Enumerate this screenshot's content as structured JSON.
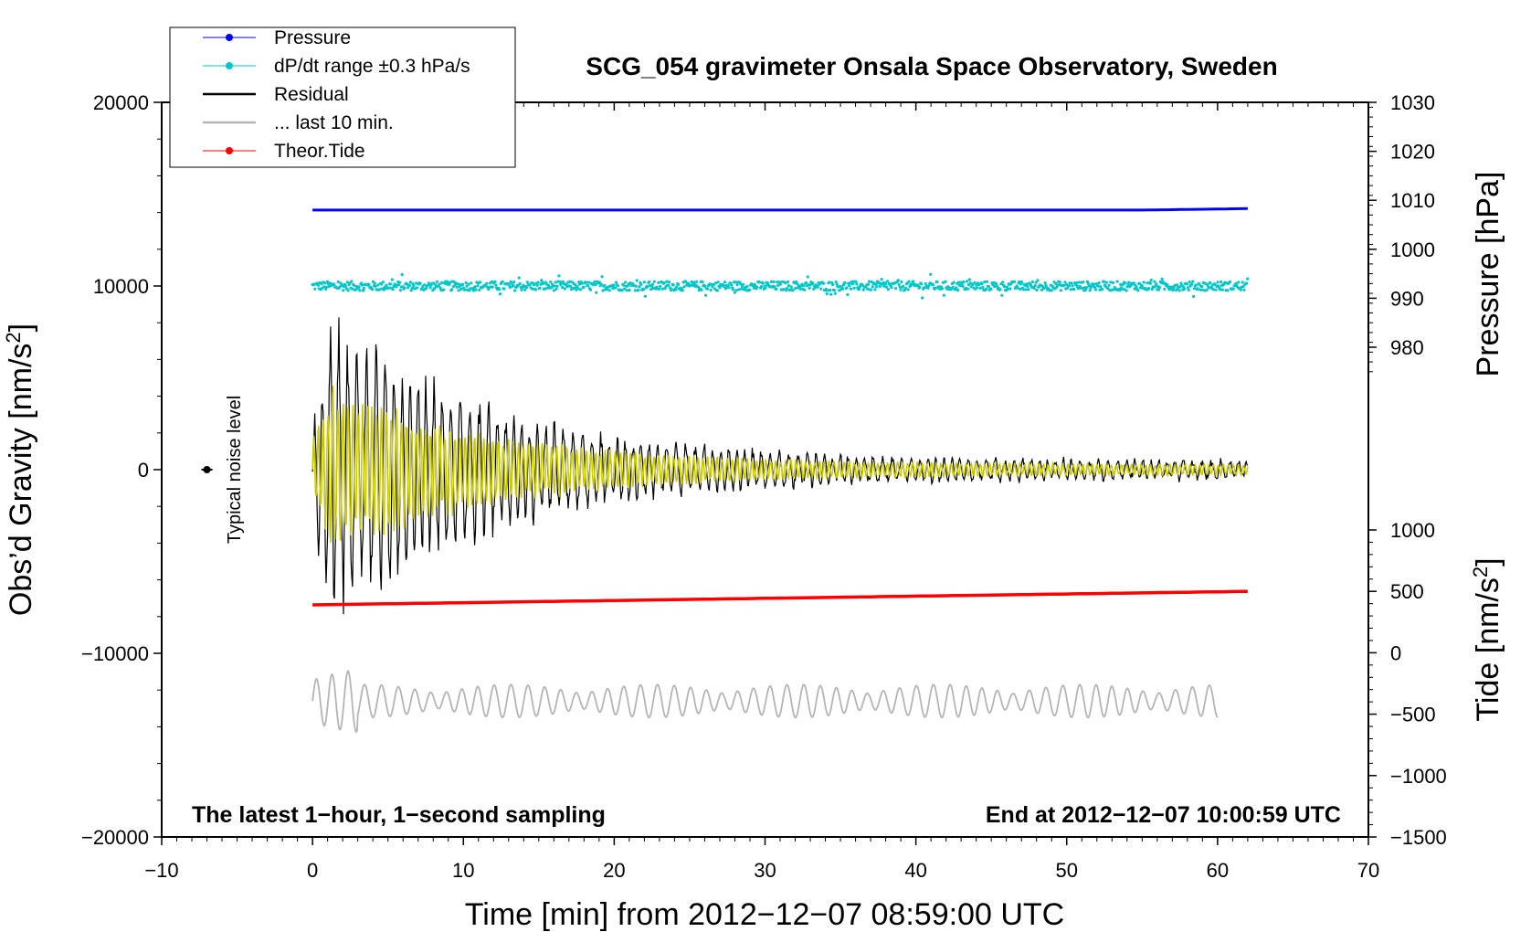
{
  "chart_data": {
    "type": "line",
    "title": "SCG_054 gravimeter Onsala Space Observatory, Sweden",
    "xlabel": "Time [min] from 2012−12−07 08:59:00 UTC",
    "ylabel_left": "Obs’d Gravity [nm/s",
    "ylabel_left_sup": "2",
    "ylabel_left_end": "]",
    "ylabel_right_top": "Pressure [hPa]",
    "ylabel_right_bottom": "Tide [nm/s",
    "ylabel_right_bottom_sup": "2",
    "ylabel_right_bottom_end": "]",
    "xlim": [
      -10,
      70
    ],
    "ylim_left": [
      -20000,
      20000
    ],
    "pressure_axis": {
      "range": [
        970,
        1030
      ],
      "ticks": [
        980,
        990,
        1000,
        1010,
        1020,
        1030
      ],
      "tick_labels": [
        "980",
        "990",
        "1000",
        "1010",
        "1020",
        "1030"
      ]
    },
    "tide_axis": {
      "range": [
        -1500,
        1500
      ],
      "ticks": [
        -1500,
        -1000,
        -500,
        0,
        500,
        1000
      ],
      "tick_labels": [
        "−1500",
        "−1000",
        "−500",
        "0",
        "500",
        "1000"
      ]
    },
    "x_ticks": [
      -10,
      0,
      10,
      20,
      30,
      40,
      50,
      60,
      70
    ],
    "x_tick_labels": [
      "−10",
      "0",
      "10",
      "20",
      "30",
      "40",
      "50",
      "60",
      "70"
    ],
    "y_ticks_left": [
      -20000,
      -10000,
      0,
      10000,
      20000
    ],
    "y_tick_labels_left": [
      "−20000",
      "−10000",
      "0",
      "10000",
      "20000"
    ],
    "legend": [
      {
        "label": "Pressure",
        "color": "#0000ff",
        "marker": true
      },
      {
        "label": "dP/dt range ±0.3 hPa/s",
        "color": "#00c8c8",
        "marker": true
      },
      {
        "label": "Residual",
        "color": "#000000",
        "marker": false
      },
      {
        "label": "... last 10 min.",
        "color": "#b4b4b4",
        "marker": false
      },
      {
        "label": "Theor.Tide",
        "color": "#ff0000",
        "marker": true
      }
    ],
    "annotations": {
      "bottom_left": "The latest 1−hour, 1−second sampling",
      "bottom_right": "End at 2012−12−07 10:00:59 UTC",
      "noise": "Typical noise level"
    },
    "series": [
      {
        "name": "Pressure",
        "color": "#0000ff",
        "axis": "pressure",
        "x_range": [
          0,
          62
        ],
        "start": 1008.0,
        "end": 1008.3
      },
      {
        "name": "dP/dt range ±0.3 hPa/s",
        "color": "#00c8c8",
        "axis": "gravity",
        "x_range": [
          0,
          62
        ],
        "center": 10000,
        "spread": 250
      },
      {
        "name": "Residual",
        "color": "#000000",
        "axis": "gravity",
        "x_range": [
          0,
          62
        ],
        "envelope_peak": 9000,
        "envelope_end": 500
      },
      {
        "name": "Residual (filtered)",
        "color": "#c8c800",
        "axis": "gravity",
        "x_range": [
          0,
          62
        ],
        "envelope_peak": 5000,
        "envelope_end": 300
      },
      {
        "name": "... last 10 min.",
        "color": "#b4b4b4",
        "axis": "gravity",
        "x_range": [
          0,
          60
        ],
        "center": -12600,
        "amplitude": 900
      },
      {
        "name": "Theor.Tide",
        "color": "#ff0000",
        "axis": "tide",
        "x_range": [
          0,
          62
        ],
        "start": 390,
        "end": 500
      }
    ],
    "noise_level": {
      "x": -7,
      "y": 0
    }
  }
}
